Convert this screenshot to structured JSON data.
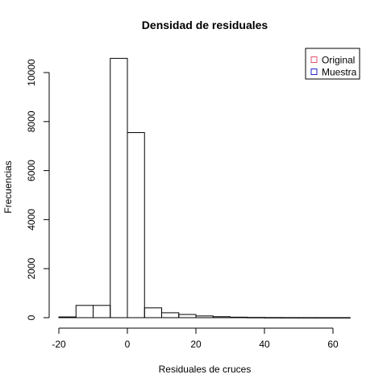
{
  "chart_data": {
    "type": "bar",
    "title": "Densidad de residuales",
    "xlabel": "Residuales de cruces",
    "ylabel": "Frecuencias",
    "xlim": [
      -20,
      65
    ],
    "ylim": [
      0,
      10600
    ],
    "x_ticks": [
      -20,
      0,
      20,
      40,
      60
    ],
    "y_ticks": [
      0,
      2000,
      4000,
      6000,
      8000,
      10000
    ],
    "bin_edges": [
      -20,
      -15,
      -10,
      -5,
      0,
      5,
      10,
      15,
      20,
      25,
      30,
      35,
      40,
      45,
      50,
      55,
      60,
      65
    ],
    "values": [
      30,
      500,
      500,
      10580,
      7550,
      400,
      200,
      130,
      70,
      40,
      20,
      10,
      5,
      3,
      2,
      1,
      1
    ],
    "legend": {
      "position": "top-right",
      "entries": [
        {
          "name": "Original",
          "color": "#df536b"
        },
        {
          "name": "Muestra",
          "color": "#2222cc"
        }
      ]
    }
  }
}
